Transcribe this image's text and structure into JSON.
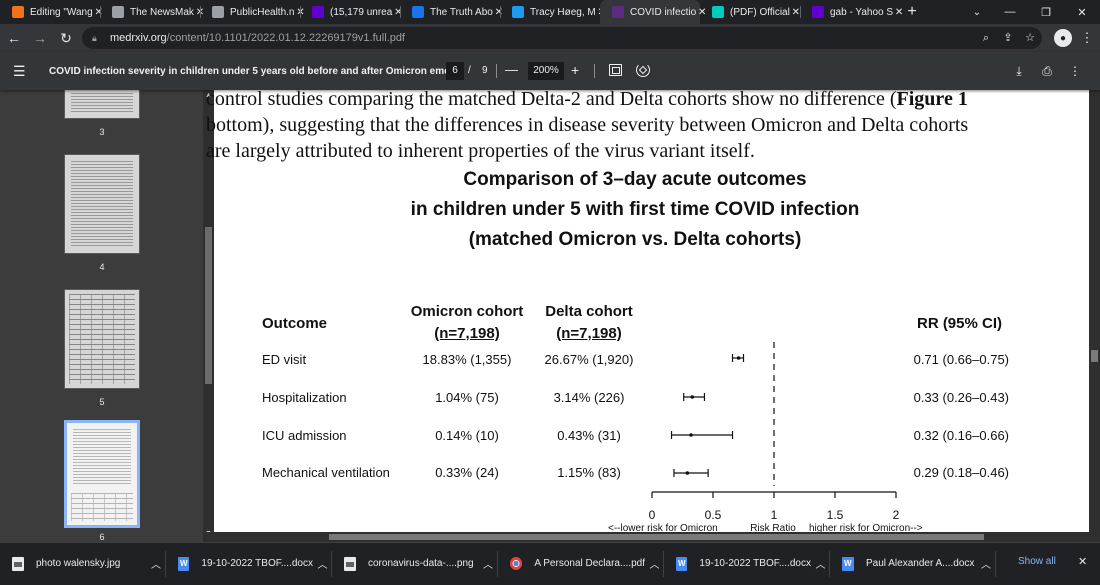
{
  "tabs": [
    {
      "title": "Editing \"Wang",
      "favicon_color": "#f2711c",
      "icon": "blogger-icon"
    },
    {
      "title": "The NewsMak",
      "favicon_color": "#9aa0a6",
      "icon": "globe-icon"
    },
    {
      "title": "PublicHealth.n",
      "favicon_color": "#9aa0a6",
      "icon": "globe-icon"
    },
    {
      "title": "(15,179 unrea",
      "favicon_color": "#6001d2",
      "icon": "mail-icon"
    },
    {
      "title": "The Truth Abo",
      "favicon_color": "#1a73e8",
      "icon": "substack-icon"
    },
    {
      "title": "Tracy Høeg, M",
      "favicon_color": "#1d9bf0",
      "icon": "twitter-icon"
    },
    {
      "title": "COVID infectio",
      "favicon_color": "#5a2d82",
      "icon": "medrxiv-icon",
      "active": true
    },
    {
      "title": "(PDF) Official",
      "favicon_color": "#00ccbb",
      "icon": "researchgate-icon"
    },
    {
      "title": "gab - Yahoo S",
      "favicon_color": "#6001d2",
      "icon": "yahoo-icon"
    }
  ],
  "window_controls": {
    "minimize": "—",
    "restore": "❐",
    "close": "✕"
  },
  "address": {
    "host": "medrxiv.org",
    "path": "/content/10.1101/2022.01.12.22269179v1.full.pdf"
  },
  "pdf_toolbar": {
    "title": "COVID infection severity in children under 5 years old before and after Omicron eme...",
    "current_page": "6",
    "separator": "/",
    "total_pages": "9",
    "zoom": "200%"
  },
  "thumbnails": [
    {
      "number": "3",
      "style": "lines"
    },
    {
      "number": "4",
      "style": "lines"
    },
    {
      "number": "5",
      "style": "grid"
    },
    {
      "number": "6",
      "style": "selected"
    }
  ],
  "document": {
    "body_lines": [
      "control studies comparing the matched Delta-2 and Delta cohorts show no difference (Figure 1",
      "bottom), suggesting that the differences in disease severity between Omicron and Delta cohorts",
      "are largely attributed to inherent properties of the virus variant itself."
    ],
    "figure_bold_word": "Figure 1",
    "chart_title_lines": [
      "Comparison of 3–day acute outcomes",
      "in children under 5 with first time COVID infection",
      "(matched Omicron vs. Delta cohorts)"
    ],
    "table": {
      "col_outcome": "Outcome",
      "col_omicron": "Omicron cohort",
      "col_omicron_n": "(n=7,198)",
      "col_delta": "Delta cohort",
      "col_delta_n": "(n=7,198)",
      "col_rr": "RR (95% CI)",
      "rows": [
        {
          "outcome": "ED visit",
          "omicron": "18.83% (1,355)",
          "delta": "26.67% (1,920)",
          "rr_text": "0.71 (0.66–0.75)"
        },
        {
          "outcome": "Hospitalization",
          "omicron": "1.04% (75)",
          "delta": "3.14% (226)",
          "rr_text": "0.33 (0.26–0.43)"
        },
        {
          "outcome": "ICU admission",
          "omicron": "0.14% (10)",
          "delta": "0.43% (31)",
          "rr_text": "0.32 (0.16–0.66)"
        },
        {
          "outcome": "Mechanical ventilation",
          "omicron": "0.33% (24)",
          "delta": "1.15% (83)",
          "rr_text": "0.29 (0.18–0.46)"
        }
      ]
    }
  },
  "chart_data": {
    "type": "scatter",
    "subtype": "forest-plot",
    "title": "Comparison of 3–day acute outcomes in children under 5 with first time COVID infection (matched Omicron vs. Delta cohorts)",
    "categories": [
      "ED visit",
      "Hospitalization",
      "ICU admission",
      "Mechanical ventilation"
    ],
    "rr": [
      0.71,
      0.33,
      0.32,
      0.29
    ],
    "ci_low": [
      0.66,
      0.26,
      0.16,
      0.18
    ],
    "ci_high": [
      0.75,
      0.43,
      0.66,
      0.46
    ],
    "reference_line": 1,
    "xlim": [
      0,
      2
    ],
    "xticks": [
      0,
      0.5,
      1,
      1.5,
      2
    ],
    "xtick_labels": [
      "0",
      "0.5",
      "1",
      "1.5",
      "2"
    ],
    "xlabel_left": "<--lower risk for Omicron",
    "xlabel_center": "Risk Ratio",
    "xlabel_right": "higher risk for Omicron-->",
    "grid": false
  },
  "downloads": [
    {
      "name": "photo walensky.jpg",
      "kind": "img"
    },
    {
      "name": "19-10-2022 TBOF....docx",
      "kind": "word"
    },
    {
      "name": "coronavirus-data-....png",
      "kind": "img"
    },
    {
      "name": "A Personal Declara....pdf",
      "kind": "chrome"
    },
    {
      "name": "19-10-2022 TBOF....docx",
      "kind": "word"
    },
    {
      "name": "Paul Alexander A....docx",
      "kind": "word"
    }
  ],
  "show_all": "Show all"
}
